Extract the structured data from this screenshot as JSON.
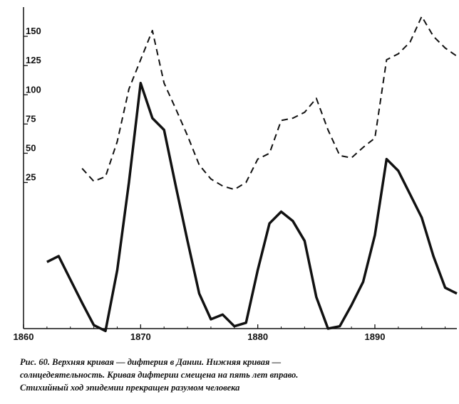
{
  "chart_data": {
    "type": "line",
    "title": "",
    "xlabel": "",
    "ylabel": "",
    "xlim": [
      1860,
      1897
    ],
    "ylim": [
      -100,
      175
    ],
    "x_ticks": [
      1860,
      1870,
      1880,
      1890
    ],
    "y_ticks": [
      25,
      50,
      75,
      100,
      125,
      150
    ],
    "grid": false,
    "series": [
      {
        "style": "dashed",
        "x": [
          1865,
          1866,
          1867,
          1868,
          1869,
          1870,
          1871,
          1872,
          1873,
          1874,
          1875,
          1876,
          1877,
          1878,
          1879,
          1880,
          1881,
          1882,
          1883,
          1884,
          1885,
          1886,
          1887,
          1888,
          1889,
          1890,
          1891,
          1892,
          1893,
          1894,
          1895,
          1896,
          1897
        ],
        "values": [
          37,
          26,
          30,
          60,
          105,
          130,
          155,
          110,
          88,
          65,
          40,
          28,
          22,
          19,
          25,
          45,
          50,
          78,
          80,
          85,
          97,
          70,
          48,
          46,
          55,
          63,
          130,
          135,
          145,
          167,
          150,
          140,
          133
        ]
      },
      {
        "style": "solid",
        "x": [
          1862,
          1863,
          1864,
          1865,
          1866,
          1867,
          1868,
          1869,
          1870,
          1871,
          1872,
          1873,
          1874,
          1875,
          1876,
          1877,
          1878,
          1879,
          1880,
          1881,
          1882,
          1883,
          1884,
          1885,
          1886,
          1887,
          1888,
          1889,
          1890,
          1891,
          1892,
          1893,
          1894,
          1895,
          1896,
          1897
        ],
        "values": [
          -43,
          -38,
          -58,
          -78,
          -97,
          -102,
          -50,
          25,
          110,
          80,
          70,
          22,
          -25,
          -70,
          -92,
          -88,
          -98,
          -95,
          -50,
          -10,
          0,
          -8,
          -25,
          -73,
          -100,
          -98,
          -80,
          -60,
          -20,
          45,
          35,
          15,
          -5,
          -38,
          -65,
          -70
        ]
      }
    ]
  },
  "caption": {
    "lines": [
      "Рис. 60. Верхняя кривая — дифтерия в Дании. Нижняя кривая —",
      "солнцедеятельность. Кривая дифтерии смещена на пять лет вправо.",
      "Стихийный ход эпидемии прекращен разумом человека"
    ]
  },
  "colors": {
    "line": "#111111",
    "background": "#ffffff"
  }
}
